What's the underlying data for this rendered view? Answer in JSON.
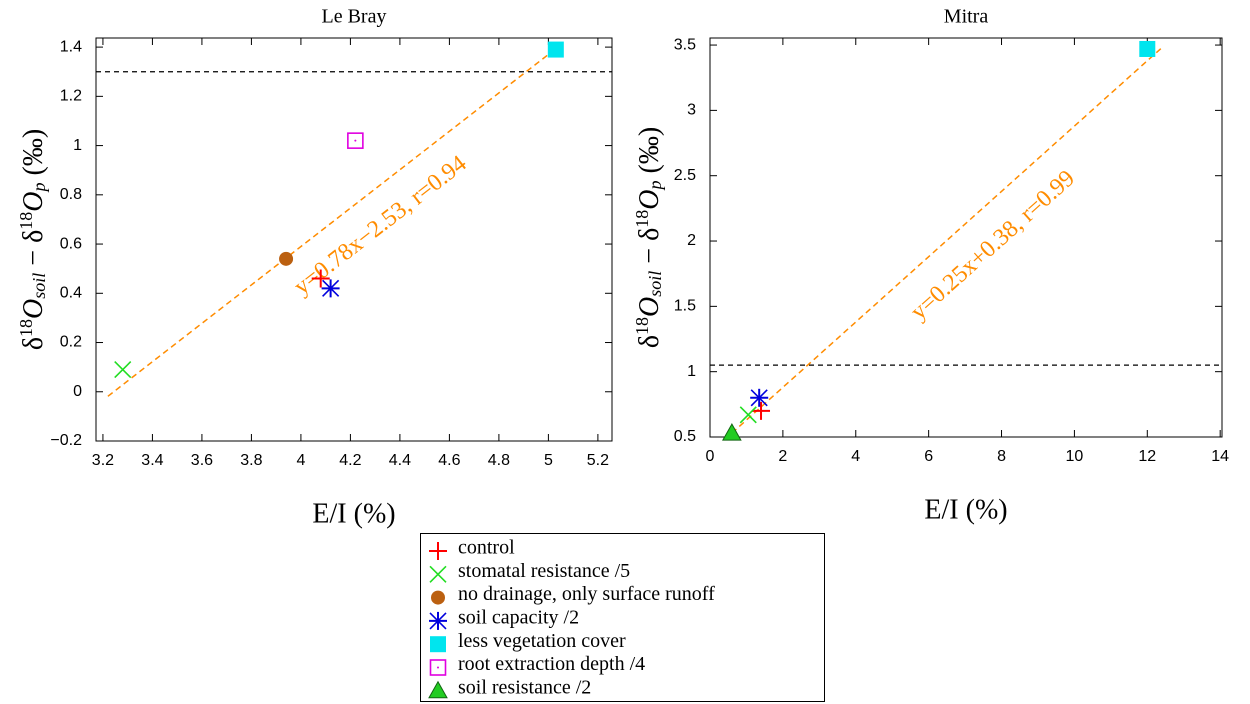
{
  "chart_data": [
    {
      "type": "scatter",
      "title": "Le Bray",
      "x_label": "E/I (%)",
      "y_label": [
        "δ",
        "18",
        "O",
        "soil",
        " − δ",
        "18",
        "O",
        "p",
        " (‰)"
      ],
      "xlim": [
        3.172,
        5.257
      ],
      "ylim": [
        -0.2,
        1.437
      ],
      "xticks": [
        3.2,
        3.4,
        3.6,
        3.8,
        4,
        4.2,
        4.4,
        4.6,
        4.8,
        5,
        5.2
      ],
      "yticks": [
        {
          "value": -0.2,
          "label": "−0.2"
        },
        0,
        0.2,
        0.4,
        0.6,
        0.8,
        1,
        1.2,
        1.4
      ],
      "reference_line": 1.3,
      "fit": {
        "label": "y=0.78x−2.53, r=0.94",
        "slope": 0.78,
        "intercept": -2.53,
        "x": [
          3.22,
          5.05
        ],
        "color": "#ff8c00"
      },
      "series": [
        {
          "name": "control",
          "color": "#ff0000",
          "marker": "plus",
          "x": [
            4.08
          ],
          "y": [
            0.46
          ]
        },
        {
          "name": "stomatal resistance /5",
          "color": "#22dd22",
          "marker": "cross",
          "x": [
            3.28
          ],
          "y": [
            0.09
          ]
        },
        {
          "name": "no drainage, only surface runoff",
          "color": "#bb6010",
          "marker": "circle",
          "x": [
            3.94
          ],
          "y": [
            0.54
          ]
        },
        {
          "name": "soil capacity /2",
          "color": "#0000dd",
          "marker": "asterisk",
          "x": [
            4.12
          ],
          "y": [
            0.42
          ]
        },
        {
          "name": "less vegetation cover",
          "color": "#00e5ee",
          "marker": "square",
          "x": [
            5.03
          ],
          "y": [
            1.39
          ]
        },
        {
          "name": "root extraction depth /4",
          "color": "#e000e0",
          "marker": "square-dot",
          "x": [
            4.22
          ],
          "y": [
            1.02
          ]
        },
        {
          "name": "soil resistance /2",
          "color": "#22cc22",
          "marker": "triangle",
          "x": [],
          "y": []
        }
      ]
    },
    {
      "type": "scatter",
      "title": "Mitra",
      "x_label": "E/I (%)",
      "y_label": [
        "δ",
        "18",
        "O",
        "soil",
        " − δ",
        "18",
        "O",
        "p",
        " (‰)"
      ],
      "xlim": [
        0,
        14.05
      ],
      "ylim": [
        0.5,
        3.554
      ],
      "xticks": [
        0,
        2,
        4,
        6,
        8,
        10,
        12,
        14
      ],
      "yticks": [
        0.5,
        1,
        1.5,
        2,
        2.5,
        3,
        3.5
      ],
      "reference_line": 1.05,
      "fit": {
        "label": "y=0.25x+0.38, r=0.99",
        "slope": 0.25,
        "intercept": 0.38,
        "x": [
          0.6,
          12.4
        ],
        "color": "#ff8c00"
      },
      "series": [
        {
          "color": "#ff0000",
          "marker": "plus",
          "x": [
            1.4
          ],
          "y": [
            0.7
          ]
        },
        {
          "color": "#22dd22",
          "marker": "cross",
          "x": [
            1.05
          ],
          "y": [
            0.67
          ]
        },
        {
          "color": "#bb6010",
          "marker": "circle",
          "x": [],
          "y": []
        },
        {
          "color": "#0000dd",
          "marker": "asterisk",
          "x": [
            1.35
          ],
          "y": [
            0.8
          ]
        },
        {
          "color": "#00e5ee",
          "marker": "square",
          "x": [
            12
          ],
          "y": [
            3.47
          ]
        },
        {
          "color": "#e000e0",
          "marker": "square-dot",
          "x": [],
          "y": []
        },
        {
          "color": "#22cc22",
          "marker": "triangle",
          "x": [
            0.6
          ],
          "y": [
            0.53
          ]
        }
      ]
    }
  ]
}
